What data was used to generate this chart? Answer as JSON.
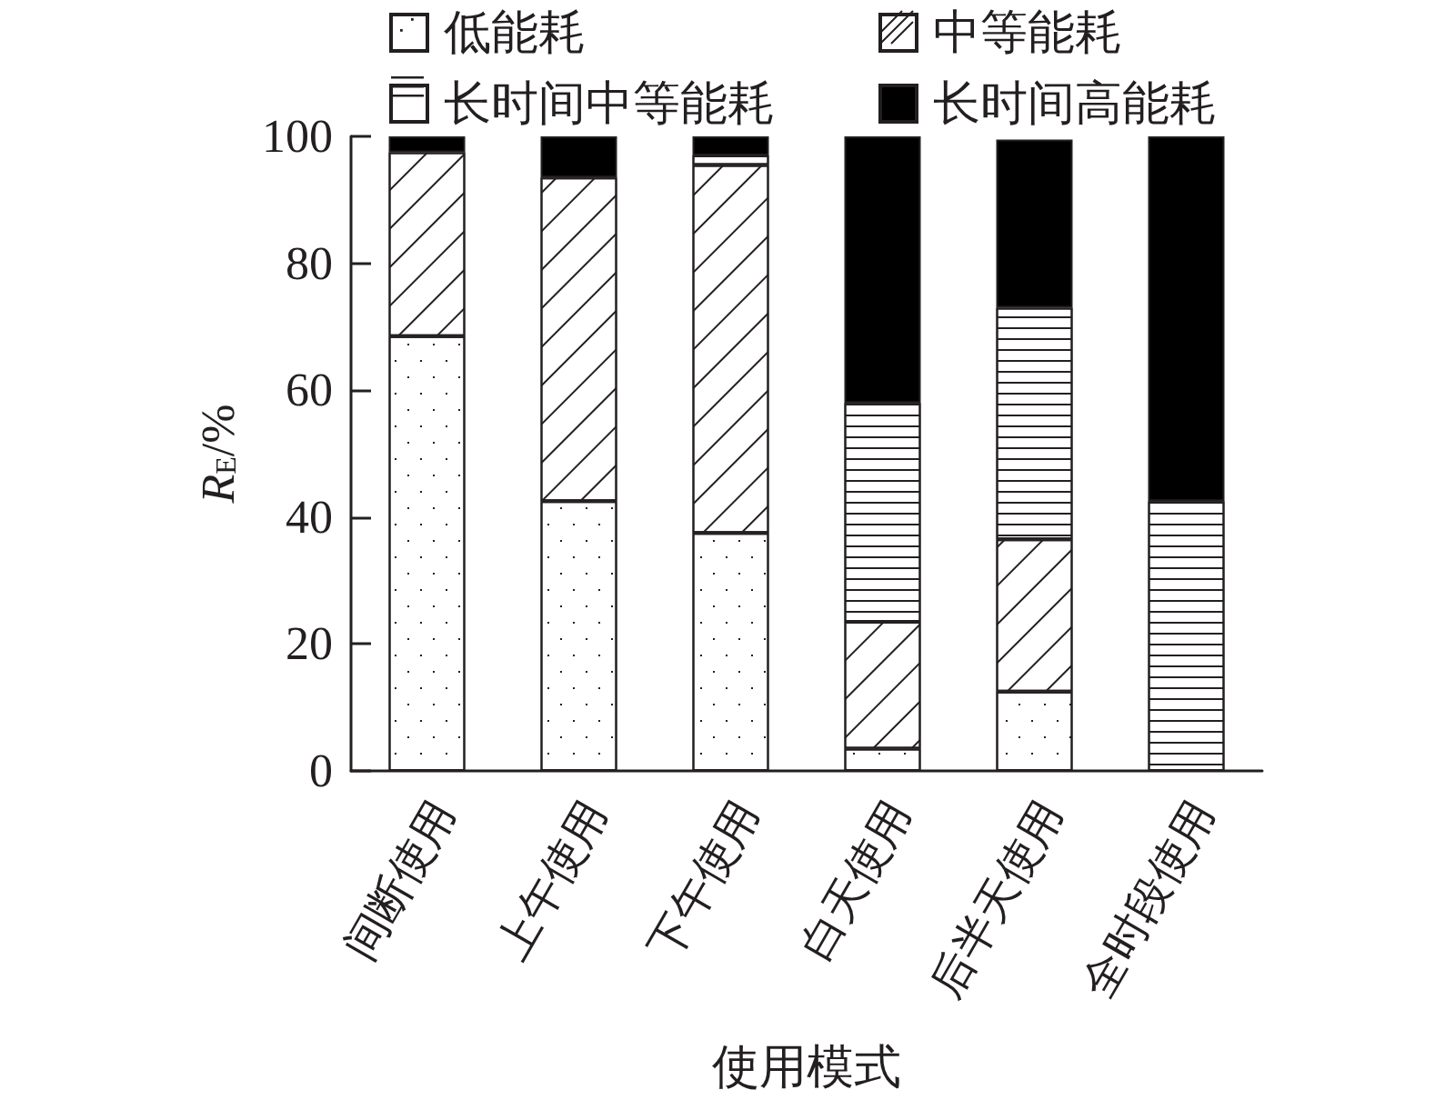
{
  "chart_data": {
    "type": "bar",
    "stacked": true,
    "xlabel": "使用模式",
    "ylabel": "R$_{E}$/%",
    "categories": [
      "间断使用",
      "上午使用",
      "下午使用",
      "白天使用",
      "后半天使用",
      "全时段使用"
    ],
    "series": [
      {
        "name": "低能耗",
        "color": "#ffffff",
        "values": [
          68.5,
          42.5,
          37.5,
          3.5,
          12.5,
          0
        ]
      },
      {
        "name": "中等能耗",
        "color": "#ffffff",
        "values": [
          29,
          51,
          58,
          20,
          24,
          0
        ]
      },
      {
        "name": "长时间中等能耗",
        "color": "#ffffff",
        "values": [
          0,
          0,
          1.5,
          34.5,
          36.5,
          42.5
        ]
      },
      {
        "name": "长时间高能耗",
        "color": "#000000",
        "values": [
          2.5,
          6.5,
          3,
          42,
          26.5,
          57.5
        ]
      }
    ],
    "ylim": [
      0,
      100
    ],
    "yticks": [
      0,
      20,
      40,
      60,
      80,
      100
    ],
    "grid": false,
    "legend": "top"
  }
}
